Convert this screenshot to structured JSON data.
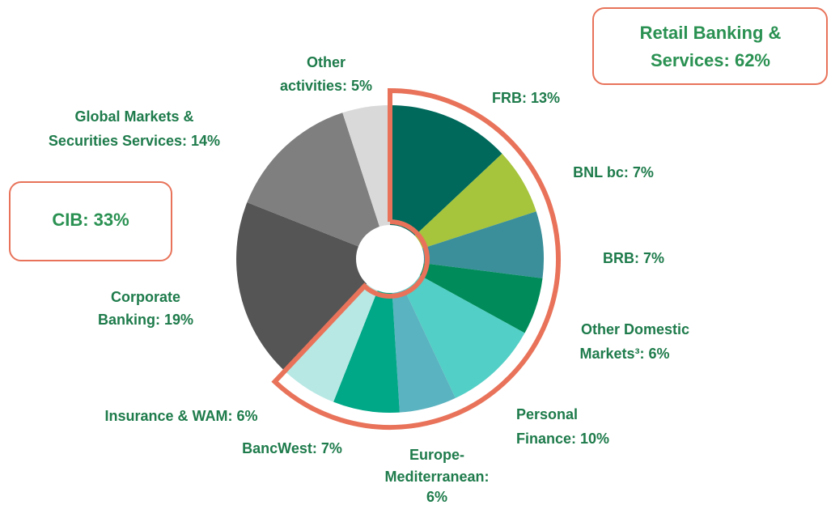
{
  "chart_data": {
    "type": "pie",
    "values": [
      13,
      7,
      7,
      6,
      10,
      6,
      7,
      6,
      19,
      14,
      5
    ],
    "value_labels": [
      [
        "FRB: 13%"
      ],
      [
        "BNL bc: 7%"
      ],
      [
        "BRB: 7%"
      ],
      [
        "Other Domestic",
        "Markets³: 6%"
      ],
      [
        "Personal",
        "Finance: 10%"
      ],
      [
        "Europe-",
        "Mediterranean:",
        "6%"
      ],
      [
        "BancWest: 7%"
      ],
      [
        "Insurance & WAM: 6%"
      ],
      [
        "Corporate",
        "Banking: 19%"
      ],
      [
        "Global Markets &",
        "Securities Services: 14%"
      ],
      [
        "Other",
        "activities: 5%"
      ]
    ],
    "colors": [
      "#00695c",
      "#a6c43c",
      "#3a8f9a",
      "#008c5a",
      "#52cfc6",
      "#5ab3c0",
      "#00a887",
      "#b8e8e4",
      "#555555",
      "#7f7f7f",
      "#d9d9d9"
    ],
    "groups": [
      {
        "label": [
          "Retail Banking &",
          "Services: 62%"
        ],
        "value": 62,
        "color": "#e8735a"
      },
      {
        "label": [
          "CIB: 33%"
        ],
        "value": 33,
        "color": "#e8735a"
      }
    ]
  }
}
